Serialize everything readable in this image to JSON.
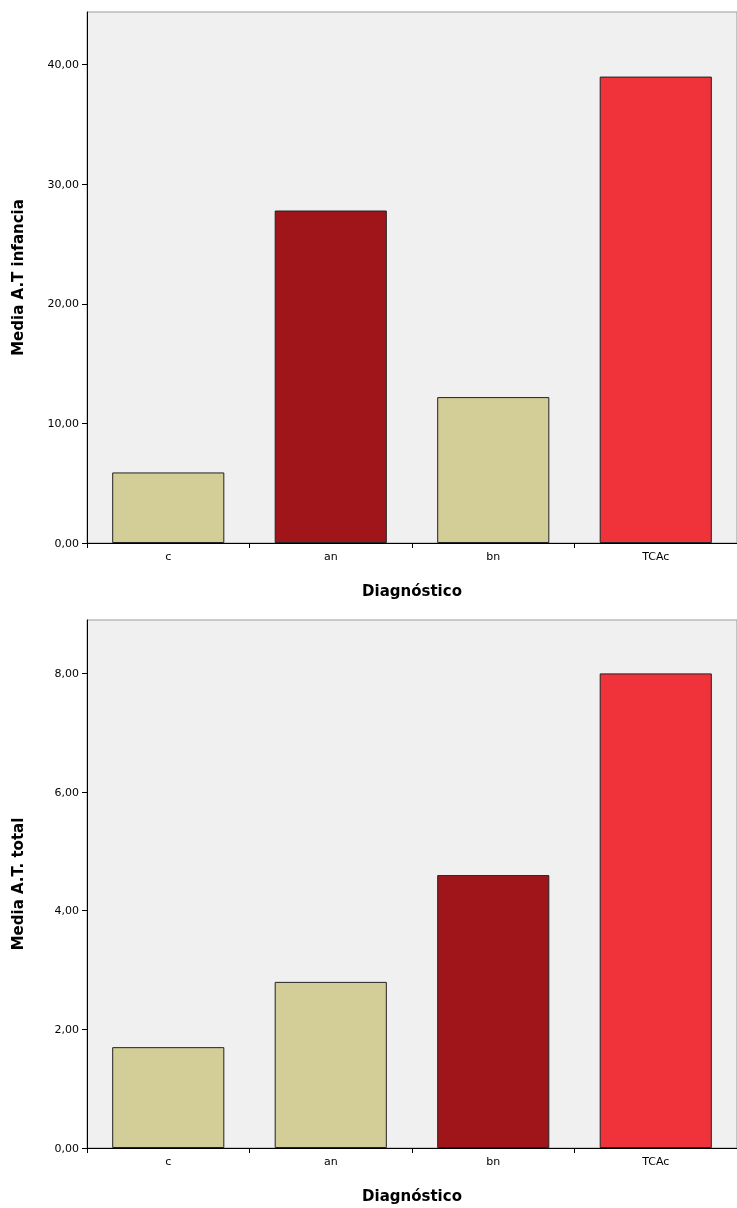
{
  "chart_data": [
    {
      "type": "bar",
      "xlabel": "Diagnóstico",
      "ylabel": "Media A.T infancia",
      "categories": [
        "c",
        "an",
        "bn",
        "TCAc"
      ],
      "values": [
        5.9,
        27.8,
        12.2,
        39.0
      ],
      "colors": [
        "#d3cd98",
        "#a0151a",
        "#d3cd98",
        "#f0323a"
      ],
      "ylim": [
        0,
        44.4
      ],
      "yticks": [
        {
          "value": 0,
          "label": "0,00"
        },
        {
          "value": 10,
          "label": "10,00"
        },
        {
          "value": 20,
          "label": "20,00"
        },
        {
          "value": 30,
          "label": "30,00"
        },
        {
          "value": 40,
          "label": "40,00"
        }
      ],
      "grid": false
    },
    {
      "type": "bar",
      "xlabel": "Diagnóstico",
      "ylabel": "Media A.T. total",
      "categories": [
        "c",
        "an",
        "bn",
        "TCAc"
      ],
      "values": [
        1.7,
        2.8,
        4.6,
        8.0
      ],
      "colors": [
        "#d3cd98",
        "#d3cd98",
        "#a0151a",
        "#f0323a"
      ],
      "ylim": [
        0,
        8.9
      ],
      "yticks": [
        {
          "value": 0,
          "label": "0,00"
        },
        {
          "value": 2,
          "label": "2,00"
        },
        {
          "value": 4,
          "label": "4,00"
        },
        {
          "value": 6,
          "label": "6,00"
        },
        {
          "value": 8,
          "label": "8,00"
        }
      ],
      "grid": false
    }
  ]
}
